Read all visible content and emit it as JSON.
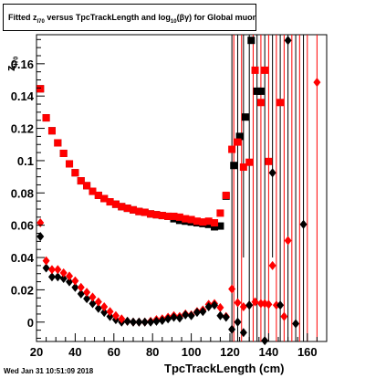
{
  "chart_data": {
    "type": "scatter",
    "title_parts": {
      "a": "Fitted  z",
      "a_sub": "I70",
      "b": " versus TpcTrackLength and log",
      "b_sub": "10",
      "c": "(βγ) for Global muon+"
    },
    "xlabel": "TpcTrackLength (cm)",
    "ylabel_main": "z",
    "ylabel_sub": "I70",
    "timestamp": "Wed Jan 31 10:51:09 2018",
    "xlim": [
      20,
      170
    ],
    "ylim": [
      -0.012,
      0.178
    ],
    "xticks": [
      20,
      40,
      60,
      80,
      100,
      120,
      140,
      160
    ],
    "yticks": [
      0,
      0.02,
      0.04,
      0.06,
      0.08,
      0.1,
      0.12,
      0.14,
      0.16
    ],
    "ytick_labels": [
      "0",
      "0.02",
      "0.04",
      "0.06",
      "0.08",
      "0.1",
      "0.12",
      "0.14",
      "0.16"
    ],
    "colors": {
      "black": "#000000",
      "red": "#ff0000"
    },
    "series": [
      {
        "marker": "square",
        "color": "#000000",
        "points": [
          {
            "x": 22,
            "y": 0.1445
          },
          {
            "x": 25,
            "y": 0.1265
          },
          {
            "x": 28,
            "y": 0.1185
          },
          {
            "x": 31,
            "y": 0.111
          },
          {
            "x": 34,
            "y": 0.1045
          },
          {
            "x": 37,
            "y": 0.098
          },
          {
            "x": 40,
            "y": 0.0925
          },
          {
            "x": 43,
            "y": 0.0875
          },
          {
            "x": 46,
            "y": 0.0845
          },
          {
            "x": 49,
            "y": 0.081
          },
          {
            "x": 52,
            "y": 0.0785
          },
          {
            "x": 55,
            "y": 0.0765
          },
          {
            "x": 58,
            "y": 0.0745
          },
          {
            "x": 61,
            "y": 0.073
          },
          {
            "x": 64,
            "y": 0.0715
          },
          {
            "x": 67,
            "y": 0.0705
          },
          {
            "x": 70,
            "y": 0.0695
          },
          {
            "x": 73,
            "y": 0.0685
          },
          {
            "x": 76,
            "y": 0.068
          },
          {
            "x": 79,
            "y": 0.067
          },
          {
            "x": 82,
            "y": 0.0665
          },
          {
            "x": 85,
            "y": 0.066
          },
          {
            "x": 88,
            "y": 0.0655
          },
          {
            "x": 91,
            "y": 0.064
          },
          {
            "x": 94,
            "y": 0.063
          },
          {
            "x": 97,
            "y": 0.0625
          },
          {
            "x": 100,
            "y": 0.062
          },
          {
            "x": 103,
            "y": 0.0615
          },
          {
            "x": 106,
            "y": 0.061
          },
          {
            "x": 109,
            "y": 0.0605
          },
          {
            "x": 112,
            "y": 0.059
          },
          {
            "x": 115,
            "y": 0.0595
          },
          {
            "x": 118,
            "y": 0.078
          },
          {
            "x": 122,
            "y": 0.097
          },
          {
            "x": 125,
            "y": 0.115
          },
          {
            "x": 128,
            "y": 0.127
          },
          {
            "x": 131,
            "y": 0.1745
          },
          {
            "x": 134,
            "y": 0.143
          }
        ]
      },
      {
        "marker": "square",
        "color": "#ff0000",
        "points": [
          {
            "x": 22,
            "y": 0.1445
          },
          {
            "x": 25,
            "y": 0.1265
          },
          {
            "x": 28,
            "y": 0.1185
          },
          {
            "x": 31,
            "y": 0.111
          },
          {
            "x": 34,
            "y": 0.1045
          },
          {
            "x": 37,
            "y": 0.098
          },
          {
            "x": 40,
            "y": 0.0925
          },
          {
            "x": 43,
            "y": 0.0875
          },
          {
            "x": 46,
            "y": 0.0845
          },
          {
            "x": 49,
            "y": 0.081
          },
          {
            "x": 52,
            "y": 0.0785
          },
          {
            "x": 55,
            "y": 0.0765
          },
          {
            "x": 58,
            "y": 0.0745
          },
          {
            "x": 61,
            "y": 0.073
          },
          {
            "x": 64,
            "y": 0.0715
          },
          {
            "x": 67,
            "y": 0.0705
          },
          {
            "x": 70,
            "y": 0.0695
          },
          {
            "x": 73,
            "y": 0.0685
          },
          {
            "x": 76,
            "y": 0.068
          },
          {
            "x": 79,
            "y": 0.067
          },
          {
            "x": 82,
            "y": 0.0665
          },
          {
            "x": 85,
            "y": 0.066
          },
          {
            "x": 88,
            "y": 0.0655
          },
          {
            "x": 91,
            "y": 0.0655
          },
          {
            "x": 94,
            "y": 0.065
          },
          {
            "x": 97,
            "y": 0.064
          },
          {
            "x": 100,
            "y": 0.0635
          },
          {
            "x": 103,
            "y": 0.0625
          },
          {
            "x": 106,
            "y": 0.062
          },
          {
            "x": 109,
            "y": 0.0625
          },
          {
            "x": 112,
            "y": 0.0615
          },
          {
            "x": 115,
            "y": 0.0675
          },
          {
            "x": 118,
            "y": 0.0785
          },
          {
            "x": 121,
            "y": 0.107
          },
          {
            "x": 124,
            "y": 0.1115
          },
          {
            "x": 127,
            "y": 0.096
          },
          {
            "x": 130,
            "y": 0.099
          },
          {
            "x": 133,
            "y": 0.156
          },
          {
            "x": 136,
            "y": 0.136
          }
        ]
      },
      {
        "marker": "diamond",
        "color": "#000000",
        "points": [
          {
            "x": 22,
            "y": 0.053
          },
          {
            "x": 25,
            "y": 0.0335
          },
          {
            "x": 28,
            "y": 0.028
          },
          {
            "x": 31,
            "y": 0.028
          },
          {
            "x": 34,
            "y": 0.027
          },
          {
            "x": 37,
            "y": 0.025
          },
          {
            "x": 40,
            "y": 0.0215
          },
          {
            "x": 43,
            "y": 0.0175
          },
          {
            "x": 46,
            "y": 0.0145
          },
          {
            "x": 49,
            "y": 0.0115
          },
          {
            "x": 52,
            "y": 0.0085
          },
          {
            "x": 55,
            "y": 0.006
          },
          {
            "x": 58,
            "y": 0.0035
          },
          {
            "x": 61,
            "y": 0.0015
          },
          {
            "x": 64,
            "y": 0.0
          }
        ]
      },
      {
        "marker": "diamond",
        "color": "#ff0000",
        "points": [
          {
            "x": 22,
            "y": 0.0615
          },
          {
            "x": 25,
            "y": 0.038
          },
          {
            "x": 28,
            "y": 0.0325
          },
          {
            "x": 31,
            "y": 0.0325
          },
          {
            "x": 34,
            "y": 0.0305
          },
          {
            "x": 37,
            "y": 0.0285
          },
          {
            "x": 40,
            "y": 0.0255
          },
          {
            "x": 43,
            "y": 0.0215
          },
          {
            "x": 46,
            "y": 0.0185
          },
          {
            "x": 49,
            "y": 0.0155
          },
          {
            "x": 52,
            "y": 0.0125
          },
          {
            "x": 55,
            "y": 0.0095
          },
          {
            "x": 58,
            "y": 0.0065
          },
          {
            "x": 61,
            "y": 0.004
          },
          {
            "x": 64,
            "y": 0.002
          },
          {
            "x": 67,
            "y": 0.0005
          },
          {
            "x": 70,
            "y": 0.0
          },
          {
            "x": 73,
            "y": 0.0
          },
          {
            "x": 76,
            "y": 0.0
          },
          {
            "x": 79,
            "y": 0.0005
          },
          {
            "x": 82,
            "y": 0.0015
          },
          {
            "x": 85,
            "y": 0.002
          },
          {
            "x": 88,
            "y": 0.003
          },
          {
            "x": 91,
            "y": 0.004
          },
          {
            "x": 94,
            "y": 0.0035
          },
          {
            "x": 97,
            "y": 0.005
          },
          {
            "x": 100,
            "y": 0.0045
          },
          {
            "x": 103,
            "y": 0.0065
          },
          {
            "x": 106,
            "y": 0.0075
          },
          {
            "x": 109,
            "y": 0.011
          },
          {
            "x": 112,
            "y": 0.0115
          },
          {
            "x": 115,
            "y": 0.009
          },
          {
            "x": 118,
            "y": 0.0035
          },
          {
            "x": 121,
            "y": 0.0205
          },
          {
            "x": 124,
            "y": 0.012
          },
          {
            "x": 127,
            "y": 0.0095
          },
          {
            "x": 130,
            "y": 0.0105
          },
          {
            "x": 133,
            "y": 0.0125
          },
          {
            "x": 136,
            "y": 0.0115
          }
        ]
      },
      {
        "marker": "diamond",
        "color": "#000000",
        "points": [
          {
            "x": 67,
            "y": 0.0005
          },
          {
            "x": 70,
            "y": 0.0
          },
          {
            "x": 73,
            "y": 0.0
          },
          {
            "x": 76,
            "y": 0.0
          },
          {
            "x": 79,
            "y": 0.0
          },
          {
            "x": 82,
            "y": 0.0005
          },
          {
            "x": 85,
            "y": 0.001
          },
          {
            "x": 88,
            "y": 0.002
          },
          {
            "x": 91,
            "y": 0.003
          },
          {
            "x": 94,
            "y": 0.0025
          },
          {
            "x": 97,
            "y": 0.0045
          },
          {
            "x": 100,
            "y": 0.004
          },
          {
            "x": 103,
            "y": 0.006
          },
          {
            "x": 106,
            "y": 0.0065
          },
          {
            "x": 109,
            "y": 0.0095
          },
          {
            "x": 112,
            "y": 0.0105
          },
          {
            "x": 115,
            "y": 0.004
          },
          {
            "x": 118,
            "y": 0.003
          },
          {
            "x": 121,
            "y": -0.0045
          },
          {
            "x": 124,
            "y": 0.0
          },
          {
            "x": 127,
            "y": -0.0065
          },
          {
            "x": 130,
            "y": 0.0105
          }
        ]
      },
      {
        "marker": "square",
        "color": "#000000",
        "points": [
          {
            "x": 136,
            "y": 0.143
          }
        ]
      }
    ],
    "error_bars": [
      {
        "x": 121,
        "y_low": -0.012,
        "y_high": 0.178,
        "color": "#000000"
      },
      {
        "x": 124,
        "y_low": -0.012,
        "y_high": 0.178,
        "color": "#000000"
      },
      {
        "x": 127,
        "y_low": 0.04,
        "y_high": 0.178,
        "color": "#000000"
      },
      {
        "x": 130,
        "y_low": -0.012,
        "y_high": 0.178,
        "color": "#000000"
      },
      {
        "x": 134,
        "y_low": -0.012,
        "y_high": 0.178,
        "color": "#000000"
      },
      {
        "x": 138,
        "y_low": -0.012,
        "y_high": 0.178,
        "color": "#000000"
      },
      {
        "x": 142,
        "y_low": 0.04,
        "y_high": 0.178,
        "color": "#000000"
      },
      {
        "x": 146,
        "y_low": -0.012,
        "y_high": 0.178,
        "color": "#000000"
      },
      {
        "x": 150,
        "y_low": -0.012,
        "y_high": 0.178,
        "color": "#000000"
      },
      {
        "x": 154,
        "y_low": -0.012,
        "y_high": 0.178,
        "color": "#000000"
      },
      {
        "x": 158,
        "y_low": -0.012,
        "y_high": 0.178,
        "color": "#000000"
      },
      {
        "x": 122,
        "y_low": -0.012,
        "y_high": 0.178,
        "color": "#ff0000"
      },
      {
        "x": 126,
        "y_low": -0.012,
        "y_high": 0.178,
        "color": "#ff0000"
      },
      {
        "x": 132,
        "y_low": -0.012,
        "y_high": 0.178,
        "color": "#ff0000"
      },
      {
        "x": 136,
        "y_low": -0.012,
        "y_high": 0.178,
        "color": "#ff0000"
      },
      {
        "x": 140,
        "y_low": -0.012,
        "y_high": 0.178,
        "color": "#ff0000"
      },
      {
        "x": 144,
        "y_low": -0.012,
        "y_high": 0.178,
        "color": "#ff0000"
      },
      {
        "x": 148,
        "y_low": -0.012,
        "y_high": 0.178,
        "color": "#ff0000"
      },
      {
        "x": 152,
        "y_low": -0.012,
        "y_high": 0.178,
        "color": "#ff0000"
      },
      {
        "x": 156,
        "y_low": -0.012,
        "y_high": 0.178,
        "color": "#ff0000"
      },
      {
        "x": 160,
        "y_low": -0.012,
        "y_high": 0.178,
        "color": "#ff0000"
      },
      {
        "x": 165,
        "y_low": -0.012,
        "y_high": 0.178,
        "color": "#ff0000"
      }
    ],
    "tail_points": [
      {
        "x": 138,
        "y": -0.0115,
        "marker": "diamond",
        "color": "#000000"
      },
      {
        "x": 138,
        "y": 0.0115,
        "marker": "diamond",
        "color": "#ff0000"
      },
      {
        "x": 140,
        "y": 0.011,
        "marker": "diamond",
        "color": "#ff0000"
      },
      {
        "x": 142,
        "y": 0.0925,
        "marker": "diamond",
        "color": "#000000"
      },
      {
        "x": 142,
        "y": 0.035,
        "marker": "diamond",
        "color": "#ff0000"
      },
      {
        "x": 144,
        "y": 0.0105,
        "marker": "diamond",
        "color": "#ff0000"
      },
      {
        "x": 146,
        "y": 0.0105,
        "marker": "diamond",
        "color": "#000000"
      },
      {
        "x": 148,
        "y": 0.0035,
        "marker": "diamond",
        "color": "#ff0000"
      },
      {
        "x": 150,
        "y": 0.1745,
        "marker": "diamond",
        "color": "#000000"
      },
      {
        "x": 150,
        "y": 0.0505,
        "marker": "diamond",
        "color": "#ff0000"
      },
      {
        "x": 154,
        "y": -0.001,
        "marker": "diamond",
        "color": "#000000"
      },
      {
        "x": 158,
        "y": 0.0605,
        "marker": "diamond",
        "color": "#000000"
      },
      {
        "x": 165,
        "y": 0.1485,
        "marker": "diamond",
        "color": "#ff0000"
      },
      {
        "x": 146,
        "y": 0.136,
        "marker": "square",
        "color": "#ff0000"
      },
      {
        "x": 138,
        "y": 0.156,
        "marker": "square",
        "color": "#ff0000"
      },
      {
        "x": 140,
        "y": 0.0995,
        "marker": "square",
        "color": "#ff0000"
      }
    ]
  }
}
